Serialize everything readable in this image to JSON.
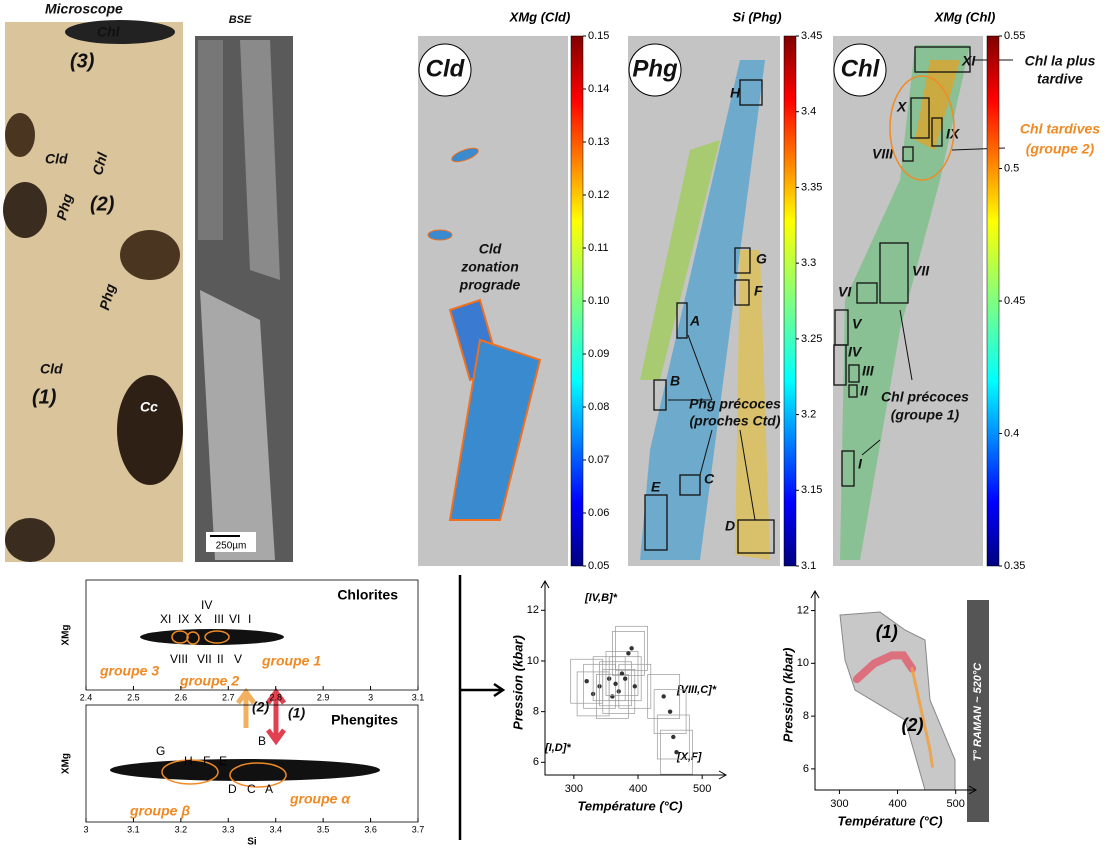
{
  "microscope": {
    "title": "Microscope",
    "labels": [
      "Chl",
      "(3)",
      "Cld",
      "Chl",
      "(2)",
      "Phg",
      "Phg",
      "Cld",
      "(1)",
      "Cc"
    ]
  },
  "bse": {
    "title": "BSE",
    "scale_bar": "250µm"
  },
  "maps": [
    {
      "badge": "Cld",
      "annotation": [
        "Cld",
        "zonation",
        "prograde"
      ]
    },
    {
      "badge": "Phg",
      "zones": [
        "H",
        "G",
        "F",
        "A",
        "B",
        "C",
        "E",
        "D"
      ],
      "annotation": [
        "Phg précoces",
        "(proches Ctd)"
      ]
    },
    {
      "badge": "Chl",
      "zones": [
        "XI",
        "X",
        "IX",
        "VIII",
        "VII",
        "VI",
        "V",
        "IV",
        "III",
        "II",
        "I"
      ],
      "annotations": [
        [
          "Chl la plus",
          "tardive"
        ],
        [
          "Chl tardives",
          "(groupe 2)"
        ],
        [
          "Chl précoces",
          "(groupe 1)"
        ]
      ]
    }
  ],
  "arrow_labels": [
    "(2)",
    "(1)"
  ],
  "chart_data": [
    {
      "type": "colorbar",
      "title": "XMg (Cld)",
      "ylim": [
        0.05,
        0.15
      ],
      "yticks": [
        0.05,
        0.06,
        0.07,
        0.08,
        0.09,
        {
          "value": 0.1,
          "label": "0.10"
        },
        0.11,
        0.12,
        0.13,
        0.14,
        0.15
      ]
    },
    {
      "type": "colorbar",
      "title": "Si (Phg)",
      "ylim": [
        3.1,
        3.45
      ],
      "yticks": [
        3.1,
        3.15,
        3.2,
        3.25,
        3.3,
        3.35,
        3.4,
        3.45
      ]
    },
    {
      "type": "colorbar",
      "title": "XMg (Chl)",
      "ylim": [
        0.35,
        0.55
      ],
      "yticks": [
        0.35,
        0.4,
        0.45,
        0.5,
        0.55
      ]
    },
    {
      "type": "scatter",
      "title": "Chlorites",
      "y_label": "XMg",
      "xlim": [
        2.4,
        3.1
      ],
      "xticks": [
        2.4,
        2.5,
        2.6,
        2.7,
        2.8,
        2.9,
        3,
        3.1
      ],
      "annotations": [
        "XI",
        "IX",
        "X",
        "IV",
        "III",
        "VI",
        "I",
        "VIII",
        "VII",
        "II",
        "V",
        "groupe 3",
        "groupe 2",
        "groupe 1"
      ]
    },
    {
      "type": "scatter",
      "title": "Phengites",
      "y_label": "XMg",
      "x_label": "Si",
      "xlim": [
        3,
        3.7
      ],
      "xticks": [
        3,
        3.1,
        3.2,
        3.3,
        3.4,
        3.5,
        3.6,
        3.7
      ],
      "annotations": [
        "G",
        "H",
        "F",
        "E",
        "B",
        "D",
        "C",
        "A",
        "groupe β",
        "groupe α"
      ]
    },
    {
      "type": "pt",
      "x_label": "Température (°C)",
      "y_label": "Pression (kbar)",
      "xlim": [
        255,
        520
      ],
      "xticks": [
        300,
        400,
        500
      ],
      "ylim": [
        5.5,
        12.8
      ],
      "yticks": [
        6,
        8,
        10,
        12
      ],
      "x": [
        320,
        330,
        340,
        355,
        360,
        365,
        370,
        375,
        380,
        385,
        390,
        395,
        440,
        450,
        455,
        460
      ],
      "y": [
        9.2,
        8.7,
        9.0,
        9.3,
        8.6,
        9.1,
        8.8,
        9.5,
        9.3,
        10.3,
        10.5,
        9.0,
        8.6,
        8.0,
        7.0,
        6.4
      ],
      "annotations": [
        "[IV,B]*",
        "[VIII,C]*",
        "[I,D]*",
        "[X,F]"
      ]
    },
    {
      "type": "path",
      "x_label": "Température (°C)",
      "y_label": "Pression (kbar)",
      "xlim": [
        258,
        516
      ],
      "xticks": [
        300,
        400,
        500
      ],
      "ylim": [
        5.2,
        12.4
      ],
      "yticks": [
        6,
        8,
        10,
        12
      ],
      "series": [
        {
          "name": "(1)",
          "color": "#e06070",
          "x": [
            330,
            360,
            390,
            410,
            425
          ],
          "y": [
            9.4,
            10.0,
            10.3,
            10.3,
            9.8
          ]
        },
        {
          "name": "(2)",
          "color": "#f0a040",
          "x": [
            425,
            435,
            445,
            455,
            460
          ],
          "y": [
            9.8,
            8.8,
            7.8,
            6.8,
            6.1
          ]
        }
      ],
      "annotation": "T° RAMAN ~ 520°C"
    }
  ]
}
